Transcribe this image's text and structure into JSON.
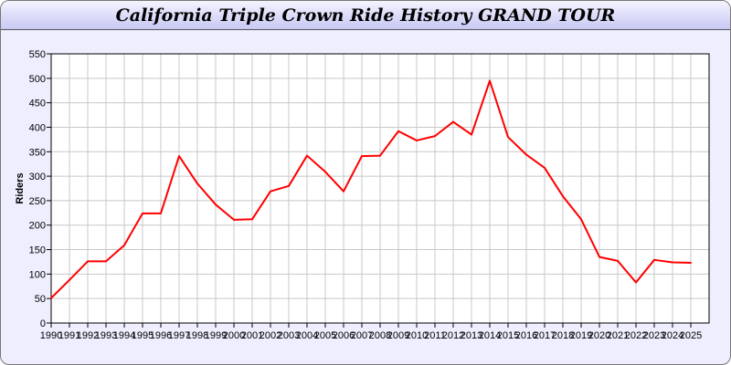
{
  "chart_data": {
    "type": "line",
    "title": "California Triple Crown Ride History GRAND TOUR",
    "xlabel": "",
    "ylabel": "Riders",
    "ylim": [
      0,
      550
    ],
    "yticks": [
      0,
      50,
      100,
      150,
      200,
      250,
      300,
      350,
      400,
      450,
      500,
      550
    ],
    "grid": true,
    "x": [
      1990,
      1991,
      1992,
      1993,
      1994,
      1995,
      1996,
      1997,
      1998,
      1999,
      2000,
      2001,
      2002,
      2003,
      2004,
      2005,
      2006,
      2007,
      2008,
      2009,
      2010,
      2011,
      2012,
      2013,
      2014,
      2015,
      2016,
      2017,
      2018,
      2019,
      2020,
      2021,
      2022,
      2023,
      2024,
      2025
    ],
    "series": [
      {
        "color": "#ff0000",
        "values": [
          51,
          88,
          126,
          126,
          159,
          224,
          224,
          341,
          285,
          242,
          211,
          212,
          269,
          280,
          342,
          309,
          269,
          341,
          342,
          392,
          373,
          382,
          411,
          385,
          495,
          380,
          344,
          317,
          259,
          212,
          135,
          127,
          83,
          129,
          124,
          123
        ]
      }
    ]
  }
}
